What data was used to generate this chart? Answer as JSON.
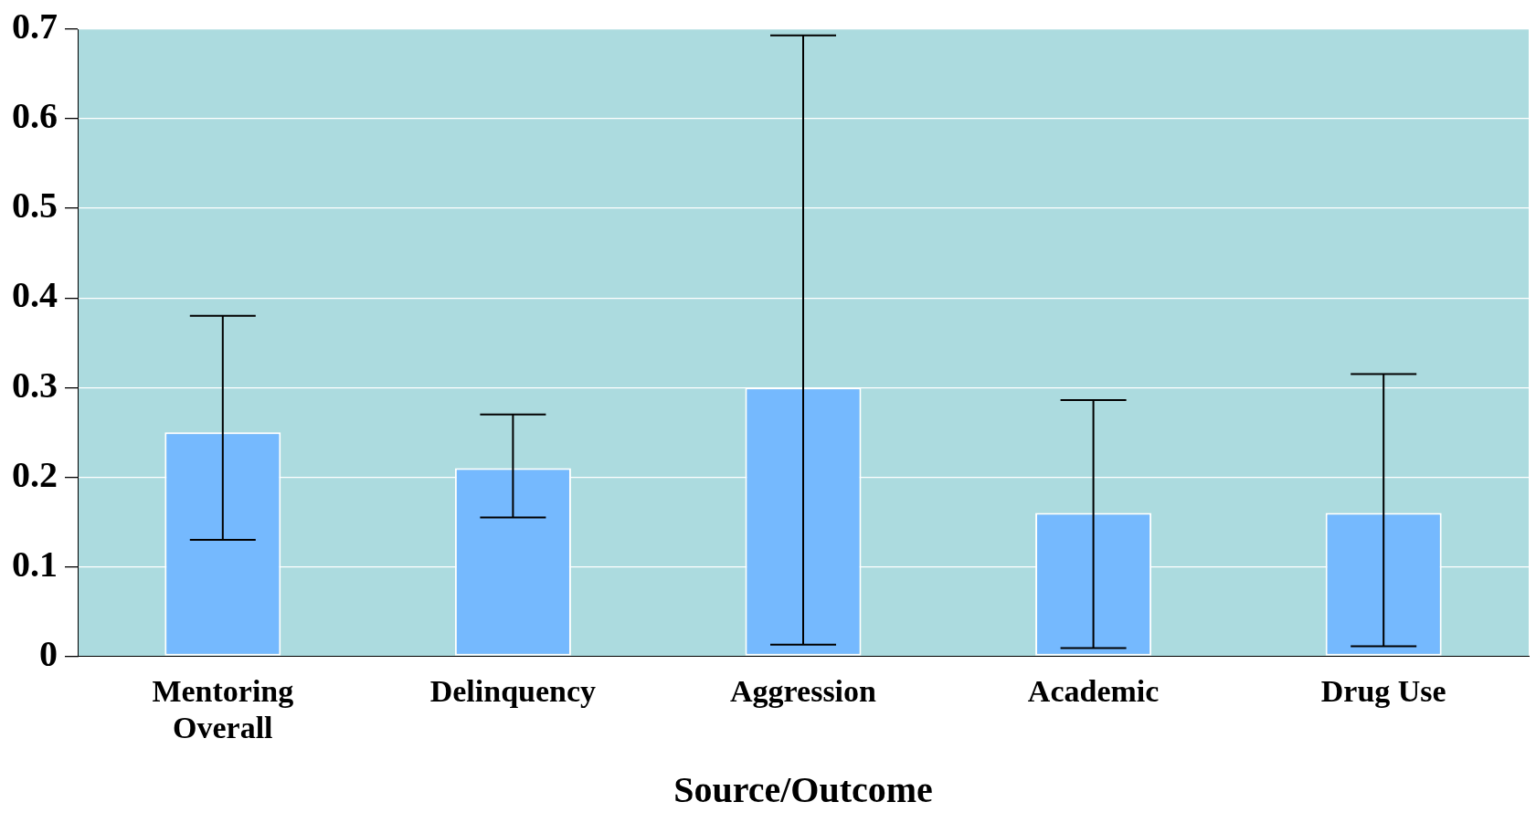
{
  "chart_data": {
    "type": "bar",
    "xlabel": "Source/Outcome",
    "categories": [
      "Mentoring Overall",
      "Delinquency",
      "Aggression",
      "Academic",
      "Drug Use"
    ],
    "values": [
      0.25,
      0.21,
      0.3,
      0.16,
      0.16
    ],
    "errors": [
      [
        0.13,
        0.38
      ],
      [
        0.155,
        0.27
      ],
      [
        0.013,
        0.693
      ],
      [
        0.009,
        0.286
      ],
      [
        0.011,
        0.315
      ]
    ],
    "color": "#75b9fe",
    "ylim": [
      0,
      0.7
    ],
    "yticks": [
      0,
      0.1,
      0.2,
      0.3,
      0.4,
      0.5,
      0.6,
      0.7
    ],
    "grid": "y"
  }
}
